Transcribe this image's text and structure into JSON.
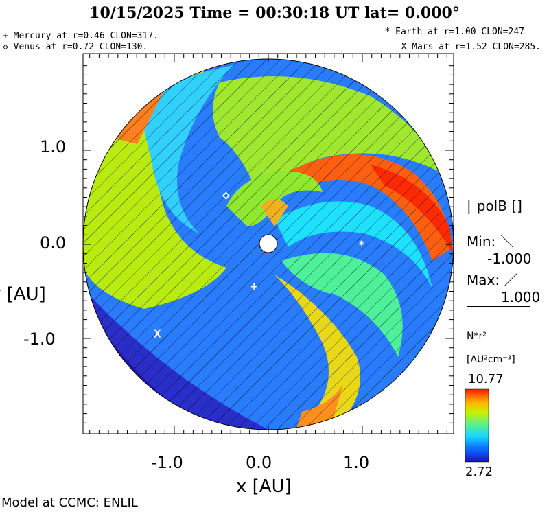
{
  "header": {
    "title": "10/15/2025  Time = 00:30:18 UT  lat= 0.000°",
    "planets_left": [
      "+ Mercury at r=0.46 CLON=317.",
      "◇ Venus at r=0.72 CLON=130."
    ],
    "planets_right": [
      "* Earth at  r=1.00 CLON=247",
      "X Mars at r=1.52 CLON=285."
    ]
  },
  "axes": {
    "y_label": "y [AU]",
    "x_label": "x [AU]",
    "y_ticks": [
      "1.0",
      "0.0",
      "-1.0"
    ],
    "x_ticks": [
      "-1.0",
      "0.0",
      "1.0"
    ]
  },
  "polarity": {
    "title": "polB []",
    "min_label": "Min:",
    "min_value": "-1.000",
    "max_label": "Max:",
    "max_value": "1.000"
  },
  "colorbar": {
    "label": "N*r²",
    "units": "[AU²cm⁻³]",
    "max": "10.77",
    "min": "2.72"
  },
  "footer": {
    "credit": "Model at CCMC: ENLIL"
  },
  "markers": [
    {
      "name": "mercury",
      "symbol": "+",
      "x": -0.15,
      "y": -0.44
    },
    {
      "name": "venus",
      "symbol": "◇",
      "x": -0.45,
      "y": 0.53
    },
    {
      "name": "earth",
      "symbol": "*",
      "x": 0.99,
      "y": 0.0
    },
    {
      "name": "mars",
      "symbol": "X",
      "x": -1.18,
      "y": -0.95
    }
  ]
}
